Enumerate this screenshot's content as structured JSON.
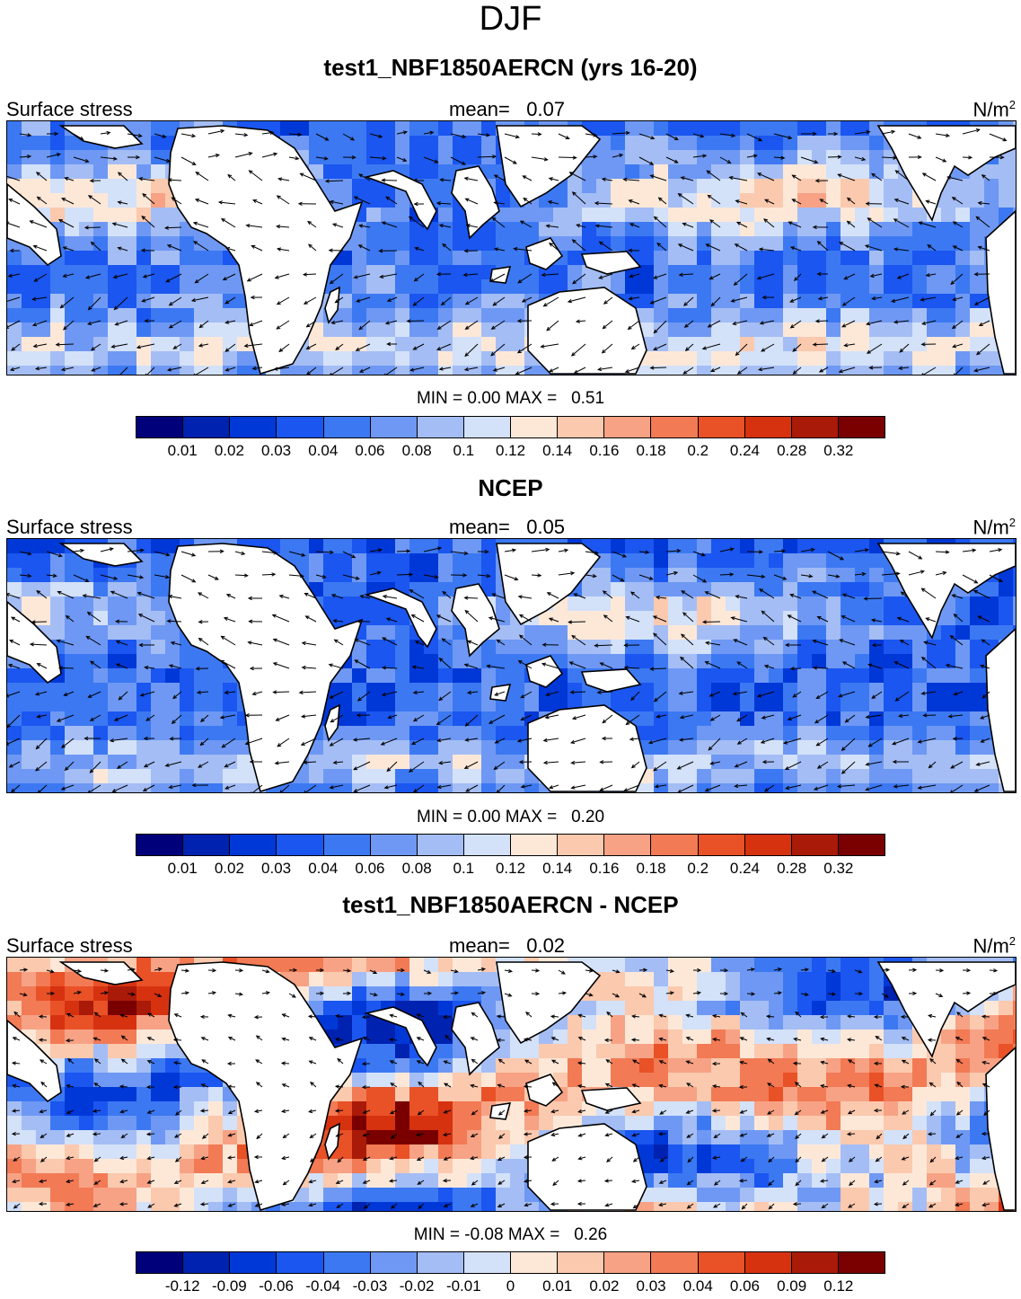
{
  "season": "DJF",
  "panels": [
    {
      "id": "model",
      "title": "test1_NBF1850AERCN (yrs 16-20)",
      "variable": "Surface stress",
      "mean_label": "mean=",
      "mean_value": "0.07",
      "units_base": "N/m",
      "units_exp": "2",
      "min_label": "MIN =",
      "min_value": "0.00",
      "max_label": "MAX =",
      "max_value": "0.51",
      "colorbar_ticks": [
        "0.01",
        "0.02",
        "0.03",
        "0.04",
        "0.06",
        "0.08",
        "0.1",
        "0.12",
        "0.14",
        "0.16",
        "0.18",
        "0.2",
        "0.24",
        "0.28",
        "0.32"
      ]
    },
    {
      "id": "obs",
      "title": "NCEP",
      "variable": "Surface stress",
      "mean_label": "mean=",
      "mean_value": "0.05",
      "units_base": "N/m",
      "units_exp": "2",
      "min_label": "MIN =",
      "min_value": "0.00",
      "max_label": "MAX =",
      "max_value": "0.20",
      "colorbar_ticks": [
        "0.01",
        "0.02",
        "0.03",
        "0.04",
        "0.06",
        "0.08",
        "0.1",
        "0.12",
        "0.14",
        "0.16",
        "0.18",
        "0.2",
        "0.24",
        "0.28",
        "0.32"
      ]
    },
    {
      "id": "diff",
      "title": "test1_NBF1850AERCN - NCEP",
      "variable": "Surface stress",
      "mean_label": "mean=",
      "mean_value": "0.02",
      "units_base": "N/m",
      "units_exp": "2",
      "min_label": "MIN =",
      "min_value": "-0.08",
      "max_label": "MAX =",
      "max_value": "0.26",
      "colorbar_ticks": [
        "-0.12",
        "-0.09",
        "-0.06",
        "-0.04",
        "-0.03",
        "-0.02",
        "-0.01",
        "0",
        "0.01",
        "0.02",
        "0.03",
        "0.04",
        "0.06",
        "0.09",
        "0.12"
      ]
    }
  ],
  "palette": [
    "#00007a",
    "#0022b0",
    "#0038d8",
    "#1a56ef",
    "#3c78f2",
    "#6e98f3",
    "#a4bdf5",
    "#d3e1f9",
    "#fde8d8",
    "#fbc9ae",
    "#f7a285",
    "#f27a55",
    "#e95127",
    "#d63210",
    "#aa1a08",
    "#7a0000"
  ]
}
